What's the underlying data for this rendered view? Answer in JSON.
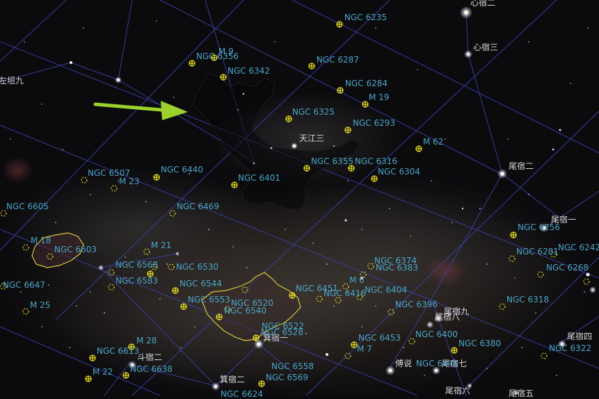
{
  "colors": {
    "background": "#0b0a0d",
    "constellation_line": "#3a43a8",
    "dso_marker": "#e8e020",
    "dso_label": "#4aa6c8",
    "star_label": "#d8d8d8",
    "arrow": "#9ad12a",
    "nebula_outline": "#d4c83a"
  },
  "pointer": {
    "icon": "green-arrow-icon"
  },
  "star_labels": [
    "心宿二",
    "心宿三",
    "左垣九",
    "天江三",
    "尾宿二",
    "尾宿一",
    "尾宿九",
    "尾宿八",
    "尾宿七",
    "尾宿六",
    "尾宿四",
    "尾宿五",
    "斗宿二",
    "箕宿一",
    "箕宿二",
    "傅说"
  ],
  "dso_labels": [
    "NGC 6235",
    "NGC 6287",
    "NGC 6342",
    "NGC 6284",
    "M 19",
    "NGC 6325",
    "NGC 6293",
    "M 62",
    "NGC 6355",
    "NGC 6316",
    "NGC 6304",
    "NGC 6401",
    "NGC 6440",
    "NGC 6507",
    "M 23",
    "NGC 6469",
    "NGC 6605",
    "M 18",
    "NGC 6603",
    "M 21",
    "NGC 6568",
    "NGC 6530",
    "NGC 6583",
    "NGC 6544",
    "NGC 6553",
    "NGC 6520",
    "NGC 6540",
    "NGC 6647",
    "M 25",
    "NGC 6522",
    "NGC 6528",
    "NGC 6451",
    "M 6",
    "NGC 6404",
    "NGC 6416",
    "NGC 6374",
    "NGC 6383",
    "NGC 6396",
    "NGC 6400",
    "NGC 6453",
    "M 7",
    "NGC 6380",
    "NGC 6441",
    "NGC 6256",
    "NGC 6281",
    "NGC 6242",
    "NGC 6268",
    "NGC 6318",
    "NGC 6322",
    "M 28",
    "NGC 6613",
    "M 22",
    "NGC 6638",
    "NGC 6558",
    "NGC 6569",
    "NGC 6624",
    "M 9",
    "NGC 6356"
  ]
}
